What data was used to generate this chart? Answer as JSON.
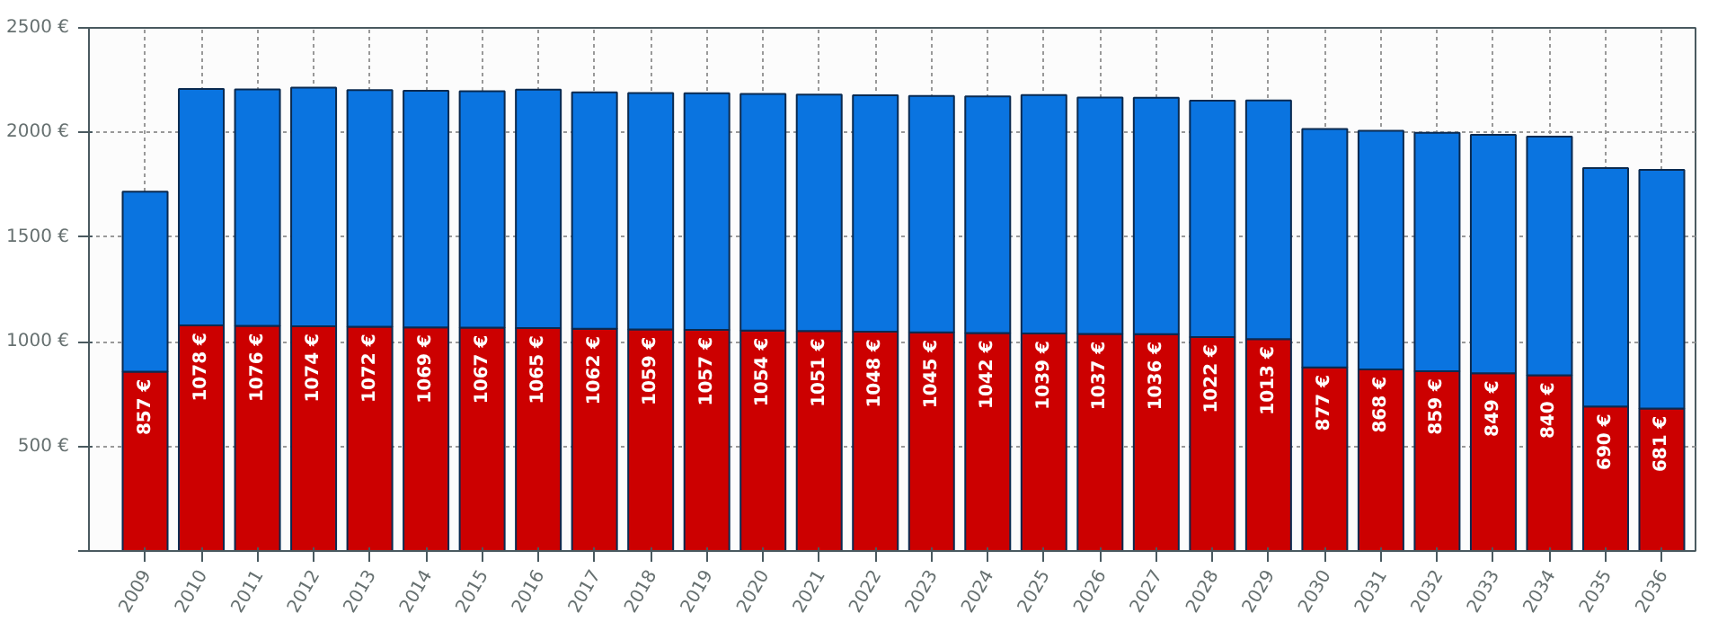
{
  "chart_data": {
    "type": "bar",
    "stacked": true,
    "categories": [
      "2009",
      "2010",
      "2011",
      "2012",
      "2013",
      "2014",
      "2015",
      "2016",
      "2017",
      "2018",
      "2019",
      "2020",
      "2021",
      "2022",
      "2023",
      "2024",
      "2025",
      "2026",
      "2027",
      "2028",
      "2029",
      "2030",
      "2031",
      "2032",
      "2033",
      "2034",
      "2035",
      "2036"
    ],
    "series": [
      {
        "color": "#cc0000",
        "values": [
          857,
          1078,
          1076,
          1074,
          1072,
          1069,
          1067,
          1065,
          1062,
          1059,
          1057,
          1054,
          1051,
          1048,
          1045,
          1042,
          1039,
          1037,
          1036,
          1022,
          1013,
          877,
          868,
          859,
          849,
          840,
          690,
          681
        ],
        "value_labels": [
          "857 €",
          "1078 €",
          "1076 €",
          "1074 €",
          "1072 €",
          "1069 €",
          "1067 €",
          "1065 €",
          "1062 €",
          "1059 €",
          "1057 €",
          "1054 €",
          "1051 €",
          "1048 €",
          "1045 €",
          "1042 €",
          "1039 €",
          "1037 €",
          "1036 €",
          "1022 €",
          "1013 €",
          "877 €",
          "868 €",
          "859 €",
          "849 €",
          "840 €",
          "690 €",
          "681 €"
        ]
      },
      {
        "color": "#0a74e0",
        "values": [
          860,
          1130,
          1130,
          1140,
          1130,
          1130,
          1130,
          1140,
          1130,
          1130,
          1130,
          1130,
          1130,
          1130,
          1130,
          1130,
          1140,
          1130,
          1130,
          1130,
          1140,
          1140,
          1140,
          1140,
          1140,
          1140,
          1140,
          1140
        ]
      }
    ],
    "ylim": [
      0,
      2500
    ],
    "yticks": [
      {
        "value": 0,
        "label": null
      },
      {
        "value": 500,
        "label": "500 €"
      },
      {
        "value": 1000,
        "label": "1000 €"
      },
      {
        "value": 1500,
        "label": "1500 €"
      },
      {
        "value": 2000,
        "label": "2000 €"
      },
      {
        "value": 2500,
        "label": "2500 €"
      }
    ],
    "grid": true
  }
}
